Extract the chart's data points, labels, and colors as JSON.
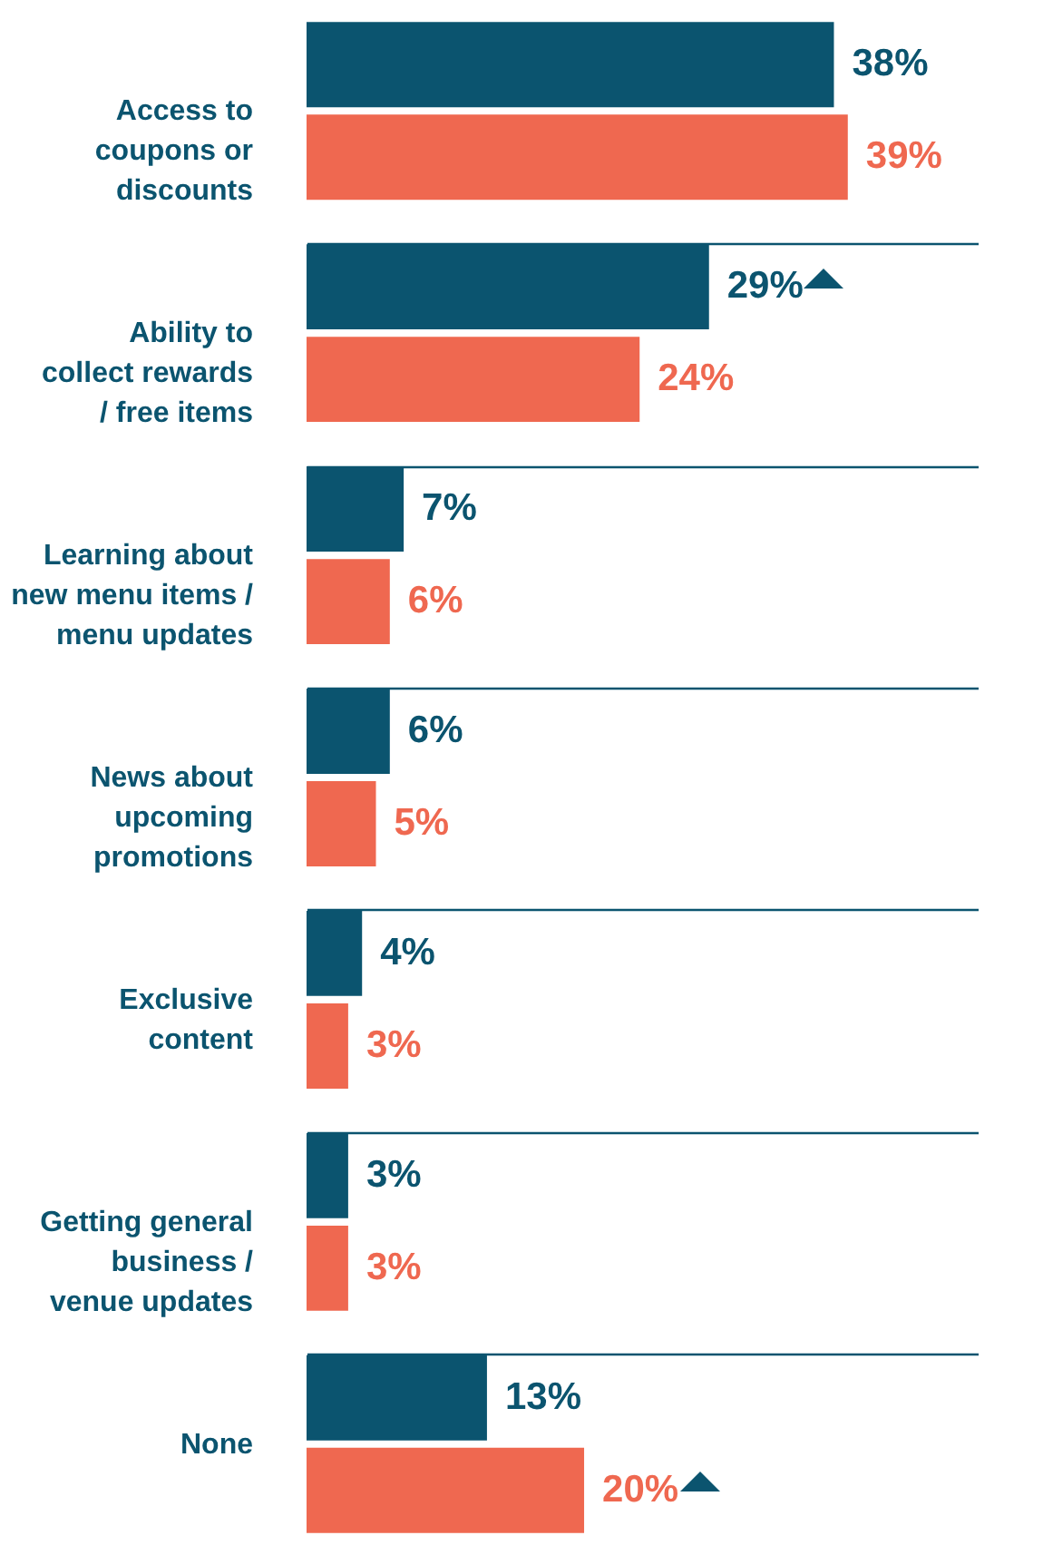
{
  "chart_data": {
    "type": "bar",
    "orientation": "horizontal",
    "grid": true,
    "legend": false,
    "categories": [
      "Access to\ncoupons or\ndiscounts",
      "Ability to\ncollect rewards\n/ free items",
      "Learning about\nnew menu items /\nmenu updates",
      "News about\nupcoming\npromotions",
      "Exclusive\ncontent",
      "Getting general\nbusiness /\nvenue updates",
      "None"
    ],
    "series": [
      {
        "color": "#0b546f",
        "values": [
          38,
          29,
          7,
          6,
          4,
          3,
          13
        ],
        "value_labels": [
          "38%",
          "29%",
          "7%",
          "6%",
          "4%",
          "3%",
          "13%"
        ]
      },
      {
        "color": "#ef6850",
        "values": [
          39,
          24,
          6,
          5,
          3,
          3,
          20
        ],
        "value_labels": [
          "39%",
          "24%",
          "6%",
          "5%",
          "3%",
          "3%",
          "20%"
        ]
      }
    ]
  }
}
